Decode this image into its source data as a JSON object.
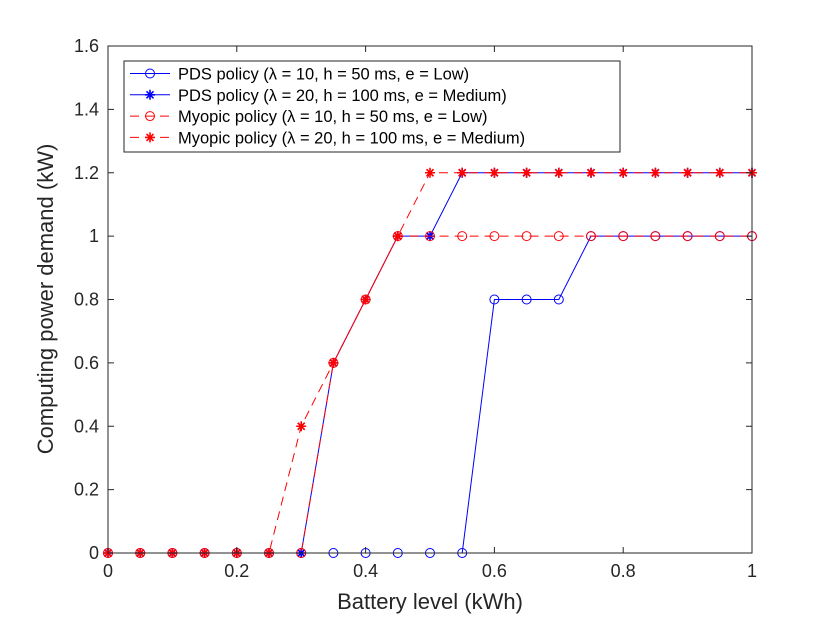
{
  "chart_data": {
    "type": "line",
    "title": "",
    "xlabel": "Battery level (kWh)",
    "ylabel": "Computing power demand (kW)",
    "xlim": [
      0,
      1
    ],
    "ylim": [
      0,
      1.6
    ],
    "xticks": [
      0,
      0.2,
      0.4,
      0.6,
      0.8,
      1
    ],
    "xtick_labels": [
      "0",
      "0.2",
      "0.4",
      "0.6",
      "0.8",
      "1"
    ],
    "yticks": [
      0,
      0.2,
      0.4,
      0.6,
      0.8,
      1,
      1.2,
      1.4,
      1.6
    ],
    "ytick_labels": [
      "0",
      "0.2",
      "0.4",
      "0.6",
      "0.8",
      "1",
      "1.2",
      "1.4",
      "1.6"
    ],
    "grid": false,
    "legend_position": "top-left",
    "x": [
      0,
      0.05,
      0.1,
      0.15,
      0.2,
      0.25,
      0.3,
      0.35,
      0.4,
      0.45,
      0.5,
      0.55,
      0.6,
      0.65,
      0.7,
      0.75,
      0.8,
      0.85,
      0.9,
      0.95,
      1
    ],
    "series": [
      {
        "name": "PDS policy (λ = 10, h = 50 ms, e = Low)",
        "color": "#0000ff",
        "line_style": "solid",
        "marker": "circle",
        "values": [
          0,
          0,
          0,
          0,
          0,
          0,
          0,
          0,
          0,
          0,
          0,
          0,
          0.8,
          0.8,
          0.8,
          1,
          1,
          1,
          1,
          1,
          1
        ]
      },
      {
        "name": "PDS policy (λ = 20, h = 100 ms, e = Medium)",
        "color": "#0000ff",
        "line_style": "solid",
        "marker": "asterisk",
        "values": [
          0,
          0,
          0,
          0,
          0,
          0,
          0,
          0.6,
          0.8,
          1,
          1,
          1.2,
          1.2,
          1.2,
          1.2,
          1.2,
          1.2,
          1.2,
          1.2,
          1.2,
          1.2
        ]
      },
      {
        "name": "Myopic policy (λ = 10, h = 50 ms, e = Low)",
        "color": "#ff0000",
        "line_style": "dashed",
        "marker": "circle",
        "values": [
          0,
          0,
          0,
          0,
          0,
          0,
          0,
          0.6,
          0.8,
          1,
          1,
          1,
          1,
          1,
          1,
          1,
          1,
          1,
          1,
          1,
          1
        ]
      },
      {
        "name": "Myopic policy (λ = 20, h = 100 ms, e = Medium)",
        "color": "#ff0000",
        "line_style": "dashed",
        "marker": "asterisk",
        "values": [
          0,
          0,
          0,
          0,
          0,
          0,
          0.4,
          0.6,
          0.8,
          1,
          1.2,
          1.2,
          1.2,
          1.2,
          1.2,
          1.2,
          1.2,
          1.2,
          1.2,
          1.2,
          1.2
        ]
      }
    ]
  }
}
